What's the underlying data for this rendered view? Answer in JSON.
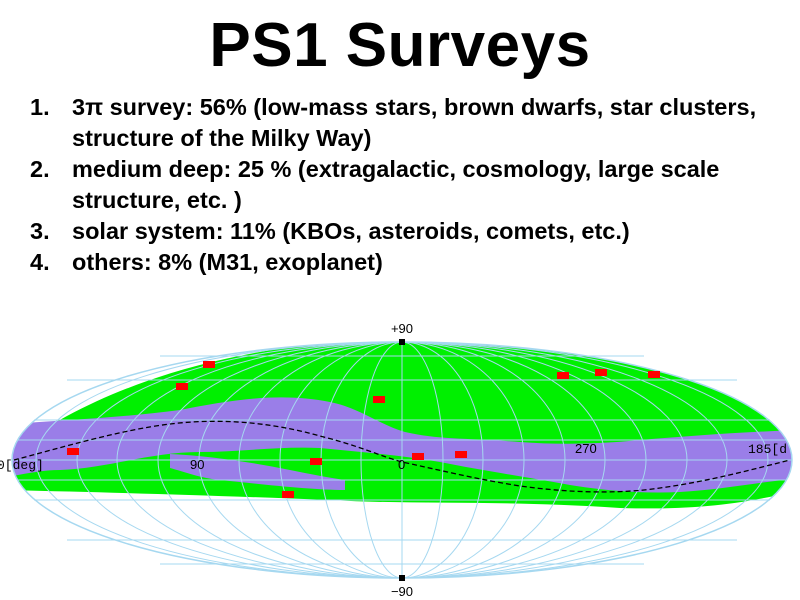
{
  "title": "PS1 Surveys",
  "items": [
    {
      "num": "1.",
      "text": "3π survey: 56% (low-mass stars, brown dwarfs, star clusters, structure of the Milky Way)"
    },
    {
      "num": "2.",
      "text": "medium deep: 25 % (extragalactic, cosmology, large scale structure, etc. )"
    },
    {
      "num": "3.",
      "text": "solar system: 11% (KBOs, asteroids, comets, etc.)"
    },
    {
      "num": "4.",
      "text": "others: 8% (M31, exoplanet)"
    }
  ],
  "sky_map": {
    "labels": {
      "north_pole": "+90",
      "south_pole": "−90",
      "lon_left": "0[deg]",
      "lon_90": "90",
      "lon_0": "0",
      "lon_270": "270",
      "lon_right": "185[d"
    },
    "colors": {
      "survey_area": "#00f000",
      "milky_way_band": "#9a7ee8",
      "medium_deep_fields": "#ff0000",
      "grid": "#a6d8f0",
      "ecliptic": "#000000"
    }
  }
}
